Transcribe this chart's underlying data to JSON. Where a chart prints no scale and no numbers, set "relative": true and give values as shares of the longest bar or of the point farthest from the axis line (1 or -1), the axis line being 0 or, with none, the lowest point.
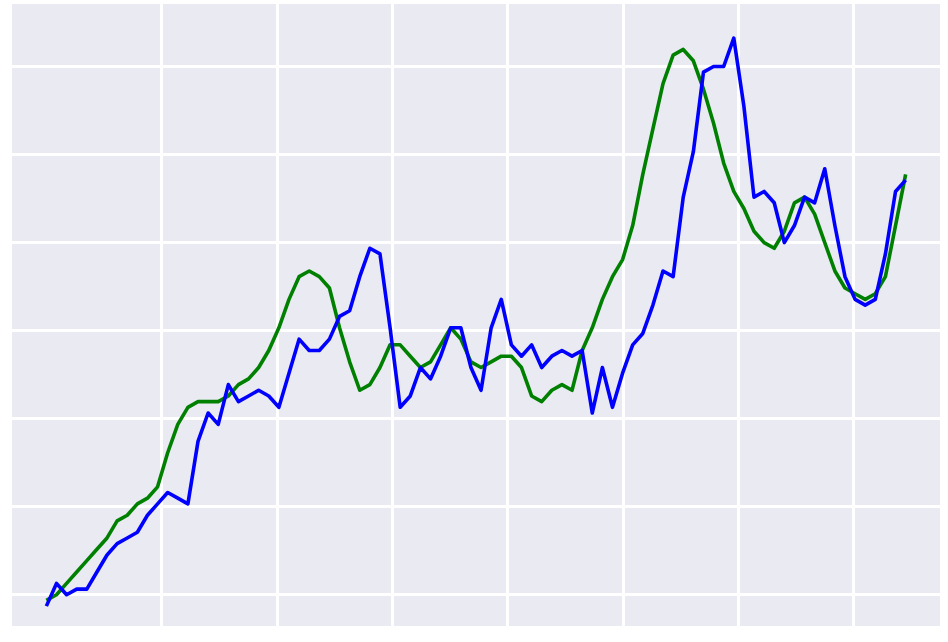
{
  "chart_data": {
    "type": "line",
    "relative": true,
    "grid": true,
    "marker": "none",
    "line_style": "solid",
    "categories": [
      null,
      null,
      null,
      null,
      null,
      null,
      null,
      null,
      null,
      null,
      null,
      null,
      null,
      null,
      null,
      null,
      null,
      null,
      null,
      null,
      null,
      null,
      null,
      null,
      null,
      null,
      null,
      null,
      null,
      null,
      null,
      null,
      null,
      null,
      null,
      null,
      null,
      null,
      null,
      null,
      null,
      null,
      null,
      null,
      null,
      null,
      null,
      null,
      null,
      null,
      null,
      null,
      null,
      null,
      null,
      null,
      null,
      null,
      null,
      null,
      null,
      null,
      null,
      null,
      null,
      null,
      null,
      null,
      null,
      null,
      null,
      null,
      null,
      null,
      null,
      null,
      null,
      null,
      null,
      null,
      null,
      null,
      null,
      null,
      null,
      null
    ],
    "series": [
      {
        "color": "#0000ff",
        "values": [
          0,
          0.04,
          0.02,
          0.03,
          0.03,
          0.06,
          0.09,
          0.11,
          0.12,
          0.13,
          0.16,
          0.18,
          0.2,
          0.19,
          0.18,
          0.29,
          0.34,
          0.32,
          0.39,
          0.36,
          0.37,
          0.38,
          0.37,
          0.35,
          0.41,
          0.47,
          0.45,
          0.45,
          0.47,
          0.51,
          0.52,
          0.58,
          0.63,
          0.62,
          0.49,
          0.35,
          0.37,
          0.42,
          0.4,
          0.44,
          0.49,
          0.49,
          0.42,
          0.38,
          0.49,
          0.54,
          0.46,
          0.44,
          0.46,
          0.42,
          0.44,
          0.45,
          0.44,
          0.45,
          0.34,
          0.42,
          0.35,
          0.41,
          0.46,
          0.48,
          0.53,
          0.59,
          0.58,
          0.72,
          0.8,
          0.94,
          0.95,
          0.95,
          1,
          0.88,
          0.72,
          0.73,
          0.71,
          0.64,
          0.67,
          0.72,
          0.71,
          0.77,
          0.67,
          0.58,
          0.54,
          0.53,
          0.54,
          0.62,
          0.73,
          0.75
        ]
      },
      {
        "color": "#008000",
        "values": [
          0.01,
          0.02,
          0.04,
          0.06,
          0.08,
          0.1,
          0.12,
          0.15,
          0.16,
          0.18,
          0.19,
          0.21,
          0.27,
          0.32,
          0.35,
          0.36,
          0.36,
          0.36,
          0.37,
          0.39,
          0.4,
          0.42,
          0.45,
          0.49,
          0.54,
          0.58,
          0.59,
          0.58,
          0.56,
          0.49,
          0.43,
          0.38,
          0.39,
          0.42,
          0.46,
          0.46,
          0.44,
          0.42,
          0.43,
          0.46,
          0.49,
          0.47,
          0.43,
          0.42,
          0.43,
          0.44,
          0.44,
          0.42,
          0.37,
          0.36,
          0.38,
          0.39,
          0.38,
          0.45,
          0.49,
          0.54,
          0.58,
          0.61,
          0.67,
          0.76,
          0.84,
          0.92,
          0.97,
          0.98,
          0.96,
          0.91,
          0.85,
          0.78,
          0.73,
          0.7,
          0.66,
          0.64,
          0.63,
          0.66,
          0.71,
          0.72,
          0.69,
          0.64,
          0.59,
          0.56,
          0.55,
          0.54,
          0.55,
          0.58,
          0.67,
          0.76
        ]
      }
    ]
  }
}
